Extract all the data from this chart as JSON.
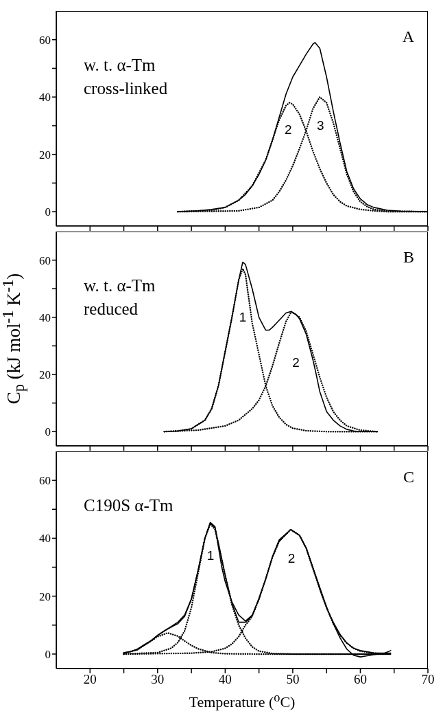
{
  "chart_data": [
    {
      "type": "line",
      "title": "A",
      "annotations": [
        "w. t. α-Tm\ncross-linked",
        "2",
        "3"
      ],
      "xlim": [
        15,
        70
      ],
      "ylim": [
        -5,
        70
      ],
      "xticks": [
        20,
        {
          "value": 25,
          "label": null
        },
        30,
        {
          "value": 35,
          "label": null
        },
        40,
        {
          "value": 45,
          "label": null
        },
        50,
        {
          "value": 55,
          "label": null
        },
        60,
        {
          "value": 65,
          "label": null
        },
        70
      ],
      "yticks": [
        0,
        {
          "value": 10,
          "label": null
        },
        20,
        {
          "value": 30,
          "label": null
        },
        40,
        {
          "value": 50,
          "label": null
        },
        60
      ],
      "tick_labels": "y",
      "series": [
        {
          "color": "#000000",
          "line_style": "solid",
          "x": [
            33,
            36,
            38,
            40,
            42,
            43,
            44,
            45,
            46,
            47,
            48,
            49,
            50,
            51,
            52,
            53,
            53.3,
            54,
            55,
            56,
            57,
            58,
            59,
            60,
            61,
            62,
            64,
            66,
            70
          ],
          "values": [
            0,
            0.3,
            0.8,
            1.5,
            4,
            6,
            9,
            13,
            18,
            25,
            33,
            41,
            47,
            51,
            55,
            58.5,
            59,
            57,
            47,
            35,
            24,
            14,
            8,
            4.5,
            2.5,
            1.5,
            0.5,
            0.2,
            0
          ]
        },
        {
          "color": "#000000",
          "line_style": "dotted",
          "x": [
            33,
            38,
            40,
            42,
            44,
            46,
            47,
            48,
            49,
            49.5,
            50,
            51,
            52,
            53,
            54,
            55,
            56,
            57,
            58,
            60,
            62,
            64,
            70
          ],
          "values": [
            0,
            0.5,
            1.5,
            4,
            9,
            18,
            25,
            32,
            37,
            38,
            37.5,
            34,
            28,
            21,
            15,
            10,
            6,
            3.5,
            2,
            0.8,
            0.3,
            0,
            0
          ]
        },
        {
          "color": "#000000",
          "line_style": "dotted",
          "x": [
            33,
            42,
            45,
            47,
            48,
            49,
            50,
            51,
            52,
            53,
            54,
            55,
            56,
            57,
            58,
            59,
            60,
            61,
            62,
            64,
            70
          ],
          "values": [
            0,
            0.3,
            1.5,
            4,
            7,
            11,
            16,
            22,
            28.5,
            36,
            40,
            38,
            31,
            22,
            13,
            7,
            3.5,
            1.8,
            0.8,
            0.2,
            0
          ]
        }
      ]
    },
    {
      "type": "line",
      "title": "B",
      "ylabel": "C$_{p}$ (kJ mol$^{-1}$ K$^{-1}$)",
      "annotations": [
        "w. t. α-Tm\nreduced",
        "1",
        "2"
      ],
      "xlim": [
        15,
        70
      ],
      "ylim": [
        -5,
        70
      ],
      "xticks": [
        20,
        {
          "value": 25,
          "label": null
        },
        30,
        {
          "value": 35,
          "label": null
        },
        40,
        {
          "value": 45,
          "label": null
        },
        50,
        {
          "value": 55,
          "label": null
        },
        60,
        {
          "value": 65,
          "label": null
        },
        70
      ],
      "yticks": [
        0,
        {
          "value": 10,
          "label": null
        },
        20,
        {
          "value": 30,
          "label": null
        },
        40,
        {
          "value": 50,
          "label": null
        },
        60
      ],
      "tick_labels": "y",
      "series": [
        {
          "color": "#000000",
          "line_style": "solid",
          "x": [
            31,
            33,
            35,
            36,
            37,
            38,
            39,
            40,
            41,
            42,
            42.6,
            43,
            44,
            45,
            46,
            46.5,
            47,
            48,
            49,
            49.7,
            50.5,
            51,
            52,
            53,
            53.5,
            54,
            55,
            56,
            57,
            58,
            59,
            60,
            62.5
          ],
          "values": [
            0,
            0.2,
            1,
            2.5,
            4,
            8,
            16,
            28,
            40,
            53,
            59.3,
            58.5,
            50,
            40,
            35.5,
            35.5,
            36.5,
            39,
            41.5,
            42,
            41,
            39.5,
            34,
            25,
            19.7,
            14,
            7,
            4,
            2,
            0.8,
            0.2,
            0,
            0
          ]
        },
        {
          "color": "#000000",
          "line_style": "dotted",
          "x": [
            31,
            33,
            35,
            36,
            37,
            38,
            39,
            40,
            41,
            42,
            42.6,
            43,
            44,
            45,
            46,
            47,
            48,
            49,
            50,
            52,
            55,
            62.5
          ],
          "values": [
            0,
            0.2,
            1,
            2.5,
            4,
            8,
            16,
            28,
            40,
            53,
            57,
            55,
            38,
            27,
            16,
            9,
            5,
            2.5,
            1.2,
            0.3,
            0,
            0
          ]
        },
        {
          "color": "#000000",
          "line_style": "dotted",
          "x": [
            31,
            36,
            40,
            42,
            44,
            45,
            46,
            47,
            48,
            49,
            49.8,
            51,
            52,
            53,
            54,
            55,
            56,
            57,
            58,
            60,
            62.5
          ],
          "values": [
            0,
            0.5,
            2,
            4,
            8,
            11,
            16,
            23,
            31,
            38.5,
            42,
            40,
            35,
            27,
            19,
            12,
            7,
            4,
            2,
            0.5,
            0
          ]
        }
      ]
    },
    {
      "type": "line",
      "title": "C",
      "xlabel": "Temperature ($^{o}$C)",
      "annotations": [
        "C190S α-Tm",
        "1",
        "2"
      ],
      "xlim": [
        15,
        70
      ],
      "ylim": [
        -5,
        70
      ],
      "xticks": [
        20,
        {
          "value": 25,
          "label": null
        },
        30,
        {
          "value": 35,
          "label": null
        },
        40,
        {
          "value": 45,
          "label": null
        },
        50,
        {
          "value": 55,
          "label": null
        },
        60,
        {
          "value": 65,
          "label": null
        },
        70
      ],
      "yticks": [
        0,
        {
          "value": 10,
          "label": null
        },
        20,
        {
          "value": 30,
          "label": null
        },
        40,
        {
          "value": 50,
          "label": null
        },
        60
      ],
      "series": [
        {
          "color": "#000000",
          "line_style": "solid",
          "x": [
            25,
            26,
            27,
            28,
            29,
            30,
            31,
            32,
            33,
            34,
            35,
            36,
            37,
            37.8,
            38.5,
            39,
            39.5,
            40,
            41,
            42,
            43,
            44,
            45,
            46,
            47,
            48,
            49.7,
            51,
            52,
            53,
            54,
            55,
            56,
            57,
            58,
            59,
            60,
            61,
            62,
            63.5,
            64.5
          ],
          "values": [
            0.5,
            0.8,
            1.7,
            3.2,
            4.6,
            6.5,
            8,
            9.5,
            11,
            13.5,
            19,
            29,
            40,
            45.5,
            44,
            37,
            30,
            25,
            18,
            13.5,
            11.4,
            13.4,
            19,
            26,
            33.7,
            39.5,
            43,
            41,
            36.6,
            29.8,
            23,
            16.3,
            10.5,
            5.6,
            1.7,
            -0.4,
            -1,
            -0.6,
            -0.2,
            0.2,
            1.2
          ]
        },
        {
          "color": "#000000",
          "line_style": "solid",
          "x": [
            25,
            27,
            29,
            30,
            31,
            32,
            33,
            34,
            35,
            36,
            37,
            37.8,
            38.5,
            39,
            40,
            41,
            42,
            43,
            44,
            45,
            46,
            47,
            48,
            49.7,
            51,
            52,
            53,
            54,
            55,
            56,
            57,
            58,
            59,
            60,
            62,
            64.5
          ],
          "values": [
            0.3,
            1.5,
            4.5,
            6.4,
            8,
            9.3,
            10.5,
            13,
            19,
            29,
            40,
            45.3,
            43.6,
            38.3,
            27.3,
            17.5,
            11,
            11,
            13.3,
            19.2,
            26,
            33.5,
            39,
            43,
            41,
            36.5,
            29.5,
            22.5,
            16,
            11,
            6.8,
            3.8,
            2,
            1.2,
            0.4,
            0.3
          ]
        },
        {
          "color": "#000000",
          "line_style": "dotted",
          "x": [
            25,
            27,
            29,
            30,
            31.5,
            33,
            34,
            35,
            36,
            38,
            40,
            45,
            64.5
          ],
          "values": [
            0.3,
            1.5,
            4.5,
            6,
            7.3,
            6.2,
            4.5,
            3,
            1.8,
            0.5,
            0.1,
            0,
            0
          ]
        },
        {
          "color": "#000000",
          "line_style": "dotted",
          "x": [
            25,
            30,
            32,
            33,
            34,
            35,
            36,
            37,
            37.8,
            38.5,
            39,
            40,
            41,
            42,
            43,
            44,
            45,
            47,
            50,
            64.5
          ],
          "values": [
            0,
            0.5,
            2,
            4,
            8,
            16,
            28,
            40,
            45,
            43,
            38,
            27,
            17,
            10,
            5.5,
            2.5,
            1,
            0.2,
            0,
            0
          ]
        },
        {
          "color": "#000000",
          "line_style": "dotted",
          "x": [
            25,
            35,
            38,
            40,
            41,
            42,
            43,
            44,
            45,
            46,
            47,
            48,
            49.7,
            51,
            52,
            53,
            54,
            55,
            56,
            57,
            58,
            59,
            60,
            62,
            64.5
          ],
          "values": [
            0,
            0.3,
            0.8,
            2,
            3.5,
            6,
            10,
            13,
            19,
            26,
            33.5,
            39,
            43,
            41,
            36.5,
            29.5,
            22.5,
            16,
            10.5,
            6.5,
            3.8,
            2,
            1,
            0.3,
            0
          ]
        }
      ]
    }
  ]
}
